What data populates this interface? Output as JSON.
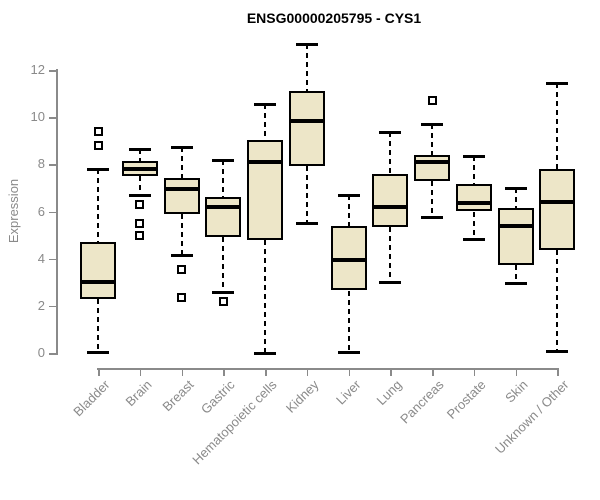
{
  "chart_data": {
    "type": "boxplot",
    "title": "ENSG00000205795 - CYS1",
    "xlabel": "",
    "ylabel": "Expression",
    "ylim": [
      0,
      12
    ],
    "yticks": [
      0,
      2,
      4,
      6,
      8,
      10,
      12
    ],
    "grid": false,
    "legend": "none",
    "categories": [
      "Bladder",
      "Brain",
      "Breast",
      "Gastric",
      "Hematopoietic cells",
      "Kidney",
      "Liver",
      "Lung",
      "Pancreas",
      "Prostate",
      "Skin",
      "Unknown / Other"
    ],
    "series": [
      {
        "category": "Bladder",
        "whisker_low": 0.05,
        "q1": 2.3,
        "median": 3.0,
        "q3": 4.7,
        "whisker_high": 7.8,
        "outliers": [
          8.8,
          9.4
        ]
      },
      {
        "category": "Brain",
        "whisker_low": 6.7,
        "q1": 7.5,
        "median": 7.8,
        "q3": 8.15,
        "whisker_high": 8.65,
        "outliers": [
          6.3,
          5.5,
          5.0
        ]
      },
      {
        "category": "Breast",
        "whisker_low": 4.15,
        "q1": 5.9,
        "median": 6.95,
        "q3": 7.4,
        "whisker_high": 8.75,
        "outliers": [
          3.55,
          2.35
        ]
      },
      {
        "category": "Gastric",
        "whisker_low": 2.6,
        "q1": 4.9,
        "median": 6.2,
        "q3": 6.6,
        "whisker_high": 8.2,
        "outliers": [
          2.2
        ]
      },
      {
        "category": "Hematopoietic cells",
        "whisker_low": 0.0,
        "q1": 4.8,
        "median": 8.1,
        "q3": 9.05,
        "whisker_high": 10.55,
        "outliers": []
      },
      {
        "category": "Kidney",
        "whisker_low": 5.5,
        "q1": 7.95,
        "median": 9.85,
        "q3": 11.1,
        "whisker_high": 13.1,
        "outliers": []
      },
      {
        "category": "Liver",
        "whisker_low": 0.05,
        "q1": 2.65,
        "median": 3.95,
        "q3": 5.4,
        "whisker_high": 6.7,
        "outliers": []
      },
      {
        "category": "Lung",
        "whisker_low": 3.0,
        "q1": 5.35,
        "median": 6.2,
        "q3": 7.6,
        "whisker_high": 9.35,
        "outliers": []
      },
      {
        "category": "Pancreas",
        "whisker_low": 5.75,
        "q1": 7.3,
        "median": 8.1,
        "q3": 8.4,
        "whisker_high": 9.7,
        "outliers": [
          10.7
        ]
      },
      {
        "category": "Prostate",
        "whisker_low": 4.85,
        "q1": 6.0,
        "median": 6.35,
        "q3": 7.15,
        "whisker_high": 8.35,
        "outliers": []
      },
      {
        "category": "Skin",
        "whisker_low": 2.95,
        "q1": 3.75,
        "median": 5.4,
        "q3": 6.15,
        "whisker_high": 7.0,
        "outliers": []
      },
      {
        "category": "Unknown / Other",
        "whisker_low": 0.1,
        "q1": 4.35,
        "median": 6.4,
        "q3": 7.8,
        "whisker_high": 11.45,
        "outliers": []
      }
    ]
  },
  "colors": {
    "background": "#FFFFFF",
    "box_fill": "#EDE6C8",
    "box_border": "#000000",
    "median": "#000000",
    "whisker": "#000000",
    "axis": "#8A8A8A",
    "tick_text": "#8A8A8A",
    "title_text": "#000000"
  }
}
